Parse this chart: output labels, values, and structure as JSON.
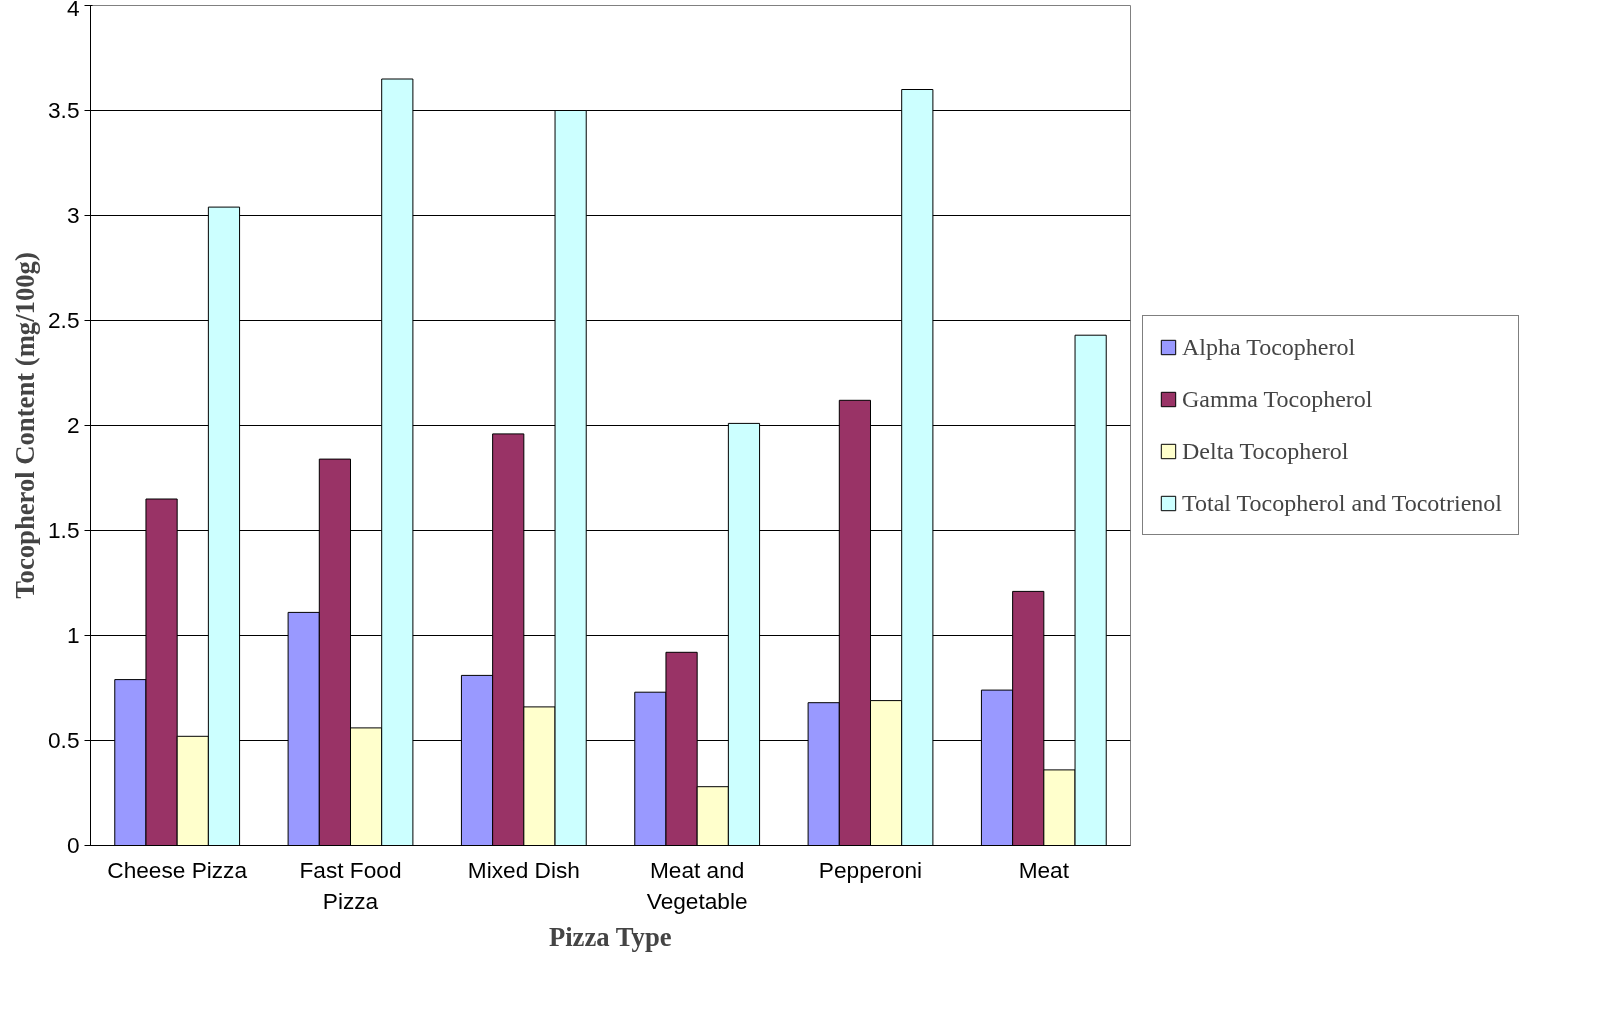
{
  "chart_data": {
    "type": "bar",
    "xlabel": "Pizza Type",
    "ylabel": "Tocopherol Content (mg/100g)",
    "categories": [
      "Cheese Pizza",
      "Fast Food Pizza",
      "Mixed Dish",
      "Meat and Vegetable",
      "Pepperoni",
      "Meat"
    ],
    "series": [
      {
        "name": "Alpha Tocopherol",
        "color": "#9999ff",
        "values": [
          0.79,
          1.11,
          0.81,
          0.73,
          0.68,
          0.74
        ]
      },
      {
        "name": "Gamma Tocopherol",
        "color": "#993366",
        "values": [
          1.65,
          1.84,
          1.96,
          0.92,
          2.12,
          1.21
        ]
      },
      {
        "name": "Delta Tocopherol",
        "color": "#ffffcc",
        "values": [
          0.52,
          0.56,
          0.66,
          0.28,
          0.69,
          0.36
        ]
      },
      {
        "name": "Total Tocopherol and Tocotrienol",
        "color": "#ccffff",
        "values": [
          3.04,
          3.65,
          3.5,
          2.01,
          3.6,
          2.43
        ]
      }
    ],
    "ylim": [
      0,
      4
    ],
    "yticks": [
      0,
      0.5,
      1,
      1.5,
      2,
      2.5,
      3,
      3.5,
      4
    ],
    "grid": "y",
    "legend": "right"
  }
}
